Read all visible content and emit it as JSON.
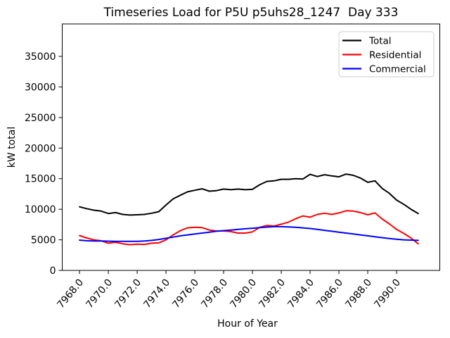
{
  "chart_data": {
    "type": "line",
    "title": "Timeseries Load for P5U p5uhs28_1247  Day 333",
    "xlabel": "Hour of Year",
    "ylabel": "kW total",
    "xlim": [
      7966.8,
      7993.0
    ],
    "ylim": [
      0,
      40300
    ],
    "grid": false,
    "legend_position": "upper right",
    "xticks": {
      "values": [
        7968,
        7970,
        7972,
        7974,
        7976,
        7978,
        7980,
        7982,
        7984,
        7986,
        7988,
        7990
      ],
      "labels": [
        "7968.0",
        "7970.0",
        "7972.0",
        "7974.0",
        "7976.0",
        "7978.0",
        "7980.0",
        "7982.0",
        "7984.0",
        "7986.0",
        "7988.0",
        "7990.0"
      ]
    },
    "yticks": {
      "values": [
        0,
        5000,
        10000,
        15000,
        20000,
        25000,
        30000,
        35000
      ],
      "labels": [
        "0",
        "5000",
        "10000",
        "15000",
        "20000",
        "25000",
        "30000",
        "35000"
      ]
    },
    "x": [
      7968.0,
      7968.5,
      7969.0,
      7969.5,
      7970.0,
      7970.5,
      7971.0,
      7971.5,
      7972.0,
      7972.5,
      7973.0,
      7973.5,
      7974.0,
      7974.5,
      7975.0,
      7975.5,
      7976.0,
      7976.5,
      7977.0,
      7977.5,
      7978.0,
      7978.5,
      7979.0,
      7979.5,
      7980.0,
      7980.5,
      7981.0,
      7981.5,
      7982.0,
      7982.5,
      7983.0,
      7983.5,
      7984.0,
      7984.5,
      7985.0,
      7985.5,
      7986.0,
      7986.5,
      7987.0,
      7987.5,
      7988.0,
      7988.5,
      7989.0,
      7989.5,
      7990.0,
      7990.5,
      7991.0,
      7991.5
    ],
    "series": [
      {
        "name": "Total",
        "color": "#000000",
        "values": [
          10400,
          10100,
          9850,
          9700,
          9300,
          9450,
          9150,
          9050,
          9100,
          9150,
          9350,
          9600,
          10700,
          11700,
          12300,
          12850,
          13100,
          13350,
          12950,
          13050,
          13300,
          13200,
          13300,
          13200,
          13250,
          14000,
          14550,
          14650,
          14900,
          14900,
          15000,
          14950,
          15700,
          15350,
          15650,
          15450,
          15300,
          15750,
          15550,
          15100,
          14400,
          14650,
          13400,
          12600,
          11500,
          10800,
          10000,
          9300
        ]
      },
      {
        "name": "Residential",
        "color": "#ff0000",
        "values": [
          5700,
          5300,
          5000,
          4850,
          4450,
          4600,
          4350,
          4200,
          4300,
          4250,
          4450,
          4500,
          5000,
          5800,
          6500,
          6950,
          7050,
          7000,
          6600,
          6450,
          6450,
          6350,
          6100,
          6100,
          6300,
          7050,
          7350,
          7250,
          7550,
          7900,
          8450,
          8900,
          8700,
          9150,
          9350,
          9150,
          9400,
          9750,
          9700,
          9450,
          9100,
          9400,
          8400,
          7600,
          6700,
          6050,
          5300,
          4350
        ]
      },
      {
        "name": "Commercial",
        "color": "#0000ff",
        "values": [
          4950,
          4850,
          4800,
          4800,
          4780,
          4760,
          4750,
          4740,
          4760,
          4800,
          4900,
          5050,
          5250,
          5450,
          5650,
          5800,
          5950,
          6100,
          6250,
          6400,
          6500,
          6600,
          6700,
          6800,
          6900,
          7000,
          7080,
          7150,
          7150,
          7120,
          7050,
          6950,
          6850,
          6700,
          6550,
          6400,
          6250,
          6100,
          5950,
          5800,
          5650,
          5500,
          5350,
          5200,
          5100,
          5000,
          4950,
          4900
        ]
      }
    ],
    "colors": {
      "spine": "#000000",
      "tick_text": "#000000",
      "legend_border": "#cccccc",
      "legend_bg": "#ffffff",
      "background": "#ffffff"
    }
  }
}
